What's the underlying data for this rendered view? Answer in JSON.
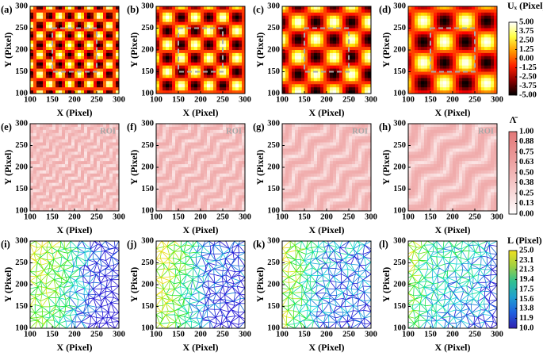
{
  "chart_data": [
    {
      "type": "heatmap",
      "label": "(a)",
      "xlabel": "X (Pixel)",
      "ylabel": "Y (Pixel)",
      "xlim": [
        100,
        300
      ],
      "ylim": [
        100,
        300
      ],
      "xticks": [
        100,
        150,
        200,
        250,
        300
      ],
      "yticks": [
        100,
        150,
        200,
        250,
        300
      ]
    },
    {
      "type": "heatmap",
      "label": "(b)",
      "xlabel": "X (Pixel)",
      "ylabel": "Y (Pixel)",
      "xlim": [
        100,
        300
      ],
      "ylim": [
        100,
        300
      ],
      "xticks": [
        100,
        150,
        200,
        250,
        300
      ],
      "yticks": [
        100,
        150,
        200,
        250,
        300
      ]
    },
    {
      "type": "heatmap",
      "label": "(c)",
      "xlabel": "X (Pixel)",
      "ylabel": "Y (Pixel)",
      "xlim": [
        100,
        300
      ],
      "ylim": [
        100,
        300
      ],
      "xticks": [
        100,
        150,
        200,
        250,
        300
      ],
      "yticks": [
        100,
        150,
        200,
        250,
        300
      ]
    },
    {
      "type": "heatmap",
      "label": "(d)",
      "xlabel": "X (Pixel)",
      "ylabel": "Y (Pixel)",
      "xlim": [
        100,
        300
      ],
      "ylim": [
        100,
        300
      ],
      "xticks": [
        100,
        150,
        200,
        250,
        300
      ],
      "yticks": [
        100,
        150,
        200,
        250,
        300
      ]
    },
    {
      "type": "heatmap",
      "label": "(e)",
      "annotation": "ROI",
      "xlabel": "X (Pixel)",
      "ylabel": "Y (Pixel)",
      "xlim": [
        100,
        300
      ],
      "ylim": [
        100,
        300
      ],
      "xticks": [
        100,
        150,
        200,
        250,
        300
      ],
      "yticks": [
        100,
        150,
        200,
        250,
        300
      ]
    },
    {
      "type": "heatmap",
      "label": "(f)",
      "annotation": "ROI",
      "xlabel": "X (Pixel)",
      "ylabel": "Y (Pixel)",
      "xlim": [
        100,
        300
      ],
      "ylim": [
        100,
        300
      ],
      "xticks": [
        100,
        150,
        200,
        250,
        300
      ],
      "yticks": [
        100,
        150,
        200,
        250,
        300
      ]
    },
    {
      "type": "heatmap",
      "label": "(g)",
      "annotation": "ROI",
      "xlabel": "X (Pixel)",
      "ylabel": "Y (Pixel)",
      "xlim": [
        100,
        300
      ],
      "ylim": [
        100,
        300
      ],
      "xticks": [
        100,
        150,
        200,
        250,
        300
      ],
      "yticks": [
        100,
        150,
        200,
        250,
        300
      ]
    },
    {
      "type": "heatmap",
      "label": "(h)",
      "annotation": "ROI",
      "xlabel": "X (Pixel)",
      "ylabel": "Y (Pixel)",
      "xlim": [
        100,
        300
      ],
      "ylim": [
        100,
        300
      ],
      "xticks": [
        100,
        150,
        200,
        250,
        300
      ],
      "yticks": [
        100,
        150,
        200,
        250,
        300
      ]
    },
    {
      "type": "mesh",
      "label": "(i)",
      "xlabel": "X (Pixel)",
      "ylabel": "Y (Pixel)",
      "xlim": [
        100,
        300
      ],
      "ylim": [
        100,
        300
      ],
      "xticks": [
        100,
        150,
        200,
        250,
        300
      ],
      "yticks": [
        100,
        150,
        200,
        250,
        300
      ]
    },
    {
      "type": "mesh",
      "label": "(j)",
      "xlabel": "X (Pixel)",
      "ylabel": "Y (Pixel)",
      "xlim": [
        100,
        300
      ],
      "ylim": [
        100,
        300
      ],
      "xticks": [
        100,
        150,
        200,
        250,
        300
      ],
      "yticks": [
        100,
        150,
        200,
        250,
        300
      ]
    },
    {
      "type": "mesh",
      "label": "(k)",
      "xlabel": "X (Pixel)",
      "ylabel": "Y (Pixel)",
      "xlim": [
        100,
        300
      ],
      "ylim": [
        100,
        300
      ],
      "xticks": [
        100,
        150,
        200,
        250,
        300
      ],
      "yticks": [
        100,
        150,
        200,
        250,
        300
      ]
    },
    {
      "type": "mesh",
      "label": "(l)",
      "xlabel": "X (Pixel)",
      "ylabel": "Y (Pixel)",
      "xlim": [
        100,
        300
      ],
      "ylim": [
        100,
        300
      ],
      "xticks": [
        100,
        150,
        200,
        250,
        300
      ],
      "yticks": [
        100,
        150,
        200,
        250,
        300
      ]
    }
  ],
  "colorbars": [
    {
      "title": "Uₓ (Pixel)",
      "clim": [
        -5,
        5
      ],
      "colors": [
        "#000000",
        "#8b0000",
        "#ff2000",
        "#ff9900",
        "#ffff40",
        "#ffffff"
      ],
      "ticks": [
        {
          "value": 5,
          "label": "5.00"
        },
        3.75,
        {
          "value": 2.5,
          "label": "2.50"
        },
        1.25,
        {
          "value": 0,
          "label": "0.00"
        },
        -1.25,
        {
          "value": -2.5,
          "label": "-2.50"
        },
        -3.75,
        {
          "value": -5,
          "label": "-5.00"
        }
      ]
    },
    {
      "title": "Λ̄",
      "clim": [
        0,
        1
      ],
      "colors": [
        "#ffffff",
        "#f6cccc",
        "#ec9c9c",
        "#e27878"
      ],
      "ticks": [
        {
          "value": 1,
          "label": "1.00"
        },
        0.88,
        0.75,
        0.63,
        {
          "value": 0.5,
          "label": "0.50"
        },
        0.38,
        0.25,
        0.13,
        {
          "value": 0,
          "label": "0.00"
        }
      ]
    },
    {
      "title": "L (Pixel)",
      "clim": [
        10,
        25
      ],
      "colors": [
        "#3020b0",
        "#2060e0",
        "#20a0d0",
        "#30c090",
        "#a0d040",
        "#f0e020"
      ],
      "ticks": [
        {
          "value": 25,
          "label": "25.0"
        },
        23.1,
        21.3,
        19.4,
        {
          "value": 17.5,
          "label": "17.5"
        },
        15.6,
        13.8,
        11.9,
        {
          "value": 10,
          "label": "10.0"
        }
      ]
    }
  ]
}
